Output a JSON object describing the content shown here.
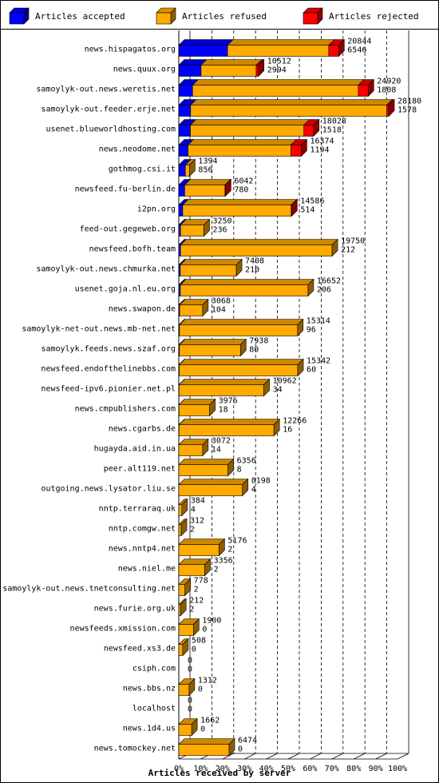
{
  "chart_data": {
    "type": "bar",
    "stacked": true,
    "orientation": "horizontal",
    "xlabel": "Articles received by server",
    "xlim": [
      0,
      100
    ],
    "x_ticks": [
      "0%",
      "10%",
      "20%",
      "30%",
      "40%",
      "50%",
      "60%",
      "70%",
      "80%",
      "90%",
      "100%"
    ],
    "grid": true,
    "legend_position": "top",
    "series": [
      {
        "name": "Articles accepted",
        "color": "#0000ff"
      },
      {
        "name": "Articles refused",
        "color": "#ffaa00"
      },
      {
        "name": "Articles rejected",
        "color": "#ff0000"
      }
    ],
    "rows": [
      {
        "server": "news.hispagatos.org",
        "total": "20844",
        "second": "6546",
        "accepted": 22.3,
        "refused": 46.3,
        "rejected": 4.5
      },
      {
        "server": "news.quux.org",
        "total": "10512",
        "second": "2994",
        "accepted": 10.2,
        "refused": 25.2,
        "rejected": 1.0
      },
      {
        "server": "samoylyk-out.news.weretis.net",
        "total": "24920",
        "second": "1808",
        "accepted": 6.3,
        "refused": 75.8,
        "rejected": 4.5
      },
      {
        "server": "samoylyk-out.feeder.erje.net",
        "total": "28180",
        "second": "1578",
        "accepted": 5.4,
        "refused": 89.7,
        "rejected": 0.9
      },
      {
        "server": "usenet.blueworldhosting.com",
        "total": "18028",
        "second": "1518",
        "accepted": 5.3,
        "refused": 51.9,
        "rejected": 4.4
      },
      {
        "server": "news.neodome.net",
        "total": "16374",
        "second": "1194",
        "accepted": 4.2,
        "refused": 47.0,
        "rejected": 4.8
      },
      {
        "server": "gothmog.csi.it",
        "total": "1394",
        "second": "856",
        "accepted": 3.0,
        "refused": 1.9,
        "rejected": 0.0
      },
      {
        "server": "newsfeed.fu-berlin.de",
        "total": "6042",
        "second": "780",
        "accepted": 2.7,
        "refused": 18.4,
        "rejected": 0.2
      },
      {
        "server": "i2pn.org",
        "total": "14586",
        "second": "514",
        "accepted": 1.8,
        "refused": 49.6,
        "rejected": 0.2
      },
      {
        "server": "feed-out.gegeweb.org",
        "total": "3250",
        "second": "236",
        "accepted": 0.8,
        "refused": 10.7,
        "rejected": 0.0
      },
      {
        "server": "newsfeed.bofh.team",
        "total": "19750",
        "second": "212",
        "accepted": 0.8,
        "refused": 69.3,
        "rejected": 0.0
      },
      {
        "server": "samoylyk-out.news.chmurka.net",
        "total": "7408",
        "second": "210",
        "accepted": 0.7,
        "refused": 25.6,
        "rejected": 0.0
      },
      {
        "server": "usenet.goja.nl.eu.org",
        "total": "16652",
        "second": "206",
        "accepted": 0.7,
        "refused": 58.4,
        "rejected": 0.0
      },
      {
        "server": "news.swapon.de",
        "total": "3068",
        "second": "104",
        "accepted": 0.4,
        "refused": 10.5,
        "rejected": 0.0
      },
      {
        "server": "samoylyk-net-out.news.mb-net.net",
        "total": "15314",
        "second": "96",
        "accepted": 0.3,
        "refused": 54.0,
        "rejected": 0.0
      },
      {
        "server": "samoylyk.feeds.news.szaf.org",
        "total": "7938",
        "second": "80",
        "accepted": 0.3,
        "refused": 27.9,
        "rejected": 0.0
      },
      {
        "server": "newsfeed.endofthelinebbs.com",
        "total": "15342",
        "second": "60",
        "accepted": 0.2,
        "refused": 54.2,
        "rejected": 0.0
      },
      {
        "server": "newsfeed-ipv6.pionier.net.pl",
        "total": "10962",
        "second": "34",
        "accepted": 0.1,
        "refused": 38.8,
        "rejected": 0.0
      },
      {
        "server": "news.cmpublishers.com",
        "total": "3976",
        "second": "18",
        "accepted": 0.1,
        "refused": 14.0,
        "rejected": 0.0
      },
      {
        "server": "news.cgarbs.de",
        "total": "12266",
        "second": "16",
        "accepted": 0.1,
        "refused": 43.4,
        "rejected": 0.0
      },
      {
        "server": "hugayda.aid.in.ua",
        "total": "3072",
        "second": "14",
        "accepted": 0.0,
        "refused": 10.9,
        "rejected": 0.0
      },
      {
        "server": "peer.alt119.net",
        "total": "6356",
        "second": "8",
        "accepted": 0.0,
        "refused": 22.5,
        "rejected": 0.0
      },
      {
        "server": "outgoing.news.lysator.liu.se",
        "total": "8198",
        "second": "4",
        "accepted": 0.0,
        "refused": 29.1,
        "rejected": 0.0
      },
      {
        "server": "nntp.terraraq.uk",
        "total": "384",
        "second": "4",
        "accepted": 0.0,
        "refused": 1.4,
        "rejected": 0.0
      },
      {
        "server": "nntp.comgw.net",
        "total": "312",
        "second": "2",
        "accepted": 0.0,
        "refused": 1.1,
        "rejected": 0.0
      },
      {
        "server": "news.nntp4.net",
        "total": "5176",
        "second": "2",
        "accepted": 0.0,
        "refused": 18.4,
        "rejected": 0.0
      },
      {
        "server": "news.niel.me",
        "total": "3356",
        "second": "2",
        "accepted": 0.0,
        "refused": 11.9,
        "rejected": 0.0
      },
      {
        "server": "samoylyk-out.news.tnetconsulting.net",
        "total": "778",
        "second": "2",
        "accepted": 0.0,
        "refused": 2.8,
        "rejected": 0.0
      },
      {
        "server": "news.furie.org.uk",
        "total": "212",
        "second": "2",
        "accepted": 0.0,
        "refused": 0.8,
        "rejected": 0.0
      },
      {
        "server": "newsfeeds.xmission.com",
        "total": "1900",
        "second": "0",
        "accepted": 0.0,
        "refused": 6.7,
        "rejected": 0.0
      },
      {
        "server": "newsfeed.xs3.de",
        "total": "508",
        "second": "0",
        "accepted": 0.0,
        "refused": 1.8,
        "rejected": 0.0
      },
      {
        "server": "csiph.com",
        "total": "0",
        "second": "0",
        "accepted": 0.0,
        "refused": 0.0,
        "rejected": 0.0
      },
      {
        "server": "news.bbs.nz",
        "total": "1312",
        "second": "0",
        "accepted": 0.0,
        "refused": 4.7,
        "rejected": 0.0
      },
      {
        "server": "localhost",
        "total": "0",
        "second": "0",
        "accepted": 0.0,
        "refused": 0.0,
        "rejected": 0.0
      },
      {
        "server": "news.1d4.us",
        "total": "1662",
        "second": "0",
        "accepted": 0.0,
        "refused": 5.9,
        "rejected": 0.0
      },
      {
        "server": "news.tomockey.net",
        "total": "6474",
        "second": "0",
        "accepted": 0.0,
        "refused": 23.0,
        "rejected": 0.0
      }
    ]
  }
}
